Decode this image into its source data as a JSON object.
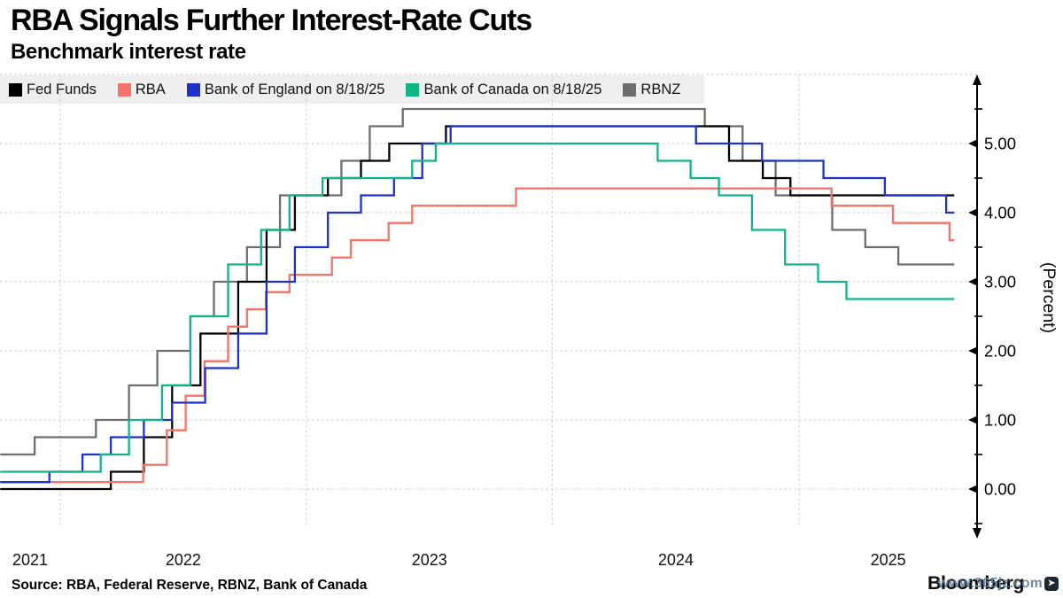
{
  "header": {
    "title": "RBA Signals Further Interest-Rate Cuts",
    "subtitle": "Benchmark interest rate"
  },
  "footer": {
    "source": "Source: RBA, Federal Reserve, RBNZ, Bank of Canada",
    "brand": "Bloomberg",
    "watermark": "www.365jz.com"
  },
  "chart_data": {
    "type": "line",
    "step": true,
    "title": "RBA Signals Further Interest-Rate Cuts",
    "subtitle": "Benchmark interest rate",
    "x_domain": [
      "2021-10-04",
      "2025-09-24"
    ],
    "series_end_date": "2025-08-19",
    "ylim": [
      -0.7,
      6.0
    ],
    "grid": "dashed",
    "legend_position": "top",
    "y_axis": {
      "label": "(Percent)",
      "side": "right",
      "majors": [
        0,
        1,
        2,
        3,
        4,
        5
      ],
      "major_labels": [
        "0.00",
        "1.00",
        "2.00",
        "3.00",
        "4.00",
        "5.00"
      ],
      "minors": [
        -0.5,
        0.5,
        1.5,
        2.5,
        3.5,
        4.5,
        5.5
      ]
    },
    "x_axis": {
      "year_labels": [
        "2021",
        "2022",
        "2023",
        "2024",
        "2025"
      ],
      "gridline_years": [
        2022,
        2023,
        2024,
        2025
      ]
    },
    "draw_order": [
      4,
      0,
      1,
      2,
      3
    ],
    "series": [
      {
        "name": "Fed Funds",
        "color": "#000000",
        "points": [
          [
            "2021-10-04",
            0.0
          ],
          [
            "2022-03-17",
            0.25
          ],
          [
            "2022-05-05",
            0.75
          ],
          [
            "2022-06-16",
            1.5
          ],
          [
            "2022-07-28",
            2.25
          ],
          [
            "2022-09-22",
            3.0
          ],
          [
            "2022-11-03",
            3.75
          ],
          [
            "2022-12-15",
            4.25
          ],
          [
            "2023-02-02",
            4.5
          ],
          [
            "2023-03-23",
            4.75
          ],
          [
            "2023-05-04",
            5.0
          ],
          [
            "2023-07-27",
            5.25
          ],
          [
            "2024-09-19",
            4.75
          ],
          [
            "2024-11-08",
            4.5
          ],
          [
            "2024-12-19",
            4.25
          ]
        ]
      },
      {
        "name": "RBA",
        "color": "#f4736b",
        "points": [
          [
            "2021-10-04",
            0.1
          ],
          [
            "2022-05-04",
            0.35
          ],
          [
            "2022-06-08",
            0.85
          ],
          [
            "2022-07-06",
            1.35
          ],
          [
            "2022-08-03",
            1.85
          ],
          [
            "2022-09-07",
            2.35
          ],
          [
            "2022-10-05",
            2.6
          ],
          [
            "2022-11-02",
            2.85
          ],
          [
            "2022-12-07",
            3.1
          ],
          [
            "2023-02-08",
            3.35
          ],
          [
            "2023-03-08",
            3.6
          ],
          [
            "2023-05-03",
            3.85
          ],
          [
            "2023-06-07",
            4.1
          ],
          [
            "2023-11-08",
            4.35
          ],
          [
            "2025-02-18",
            4.1
          ],
          [
            "2025-05-20",
            3.85
          ],
          [
            "2025-08-12",
            3.6
          ]
        ]
      },
      {
        "name": "Bank of England on 8/18/25",
        "color": "#1e32c8",
        "points": [
          [
            "2021-10-04",
            0.1
          ],
          [
            "2021-12-16",
            0.25
          ],
          [
            "2022-02-03",
            0.5
          ],
          [
            "2022-03-17",
            0.75
          ],
          [
            "2022-05-05",
            1.0
          ],
          [
            "2022-06-16",
            1.25
          ],
          [
            "2022-08-04",
            1.75
          ],
          [
            "2022-09-22",
            2.25
          ],
          [
            "2022-11-03",
            3.0
          ],
          [
            "2022-12-15",
            3.5
          ],
          [
            "2023-02-02",
            4.0
          ],
          [
            "2023-03-23",
            4.25
          ],
          [
            "2023-05-11",
            4.5
          ],
          [
            "2023-06-22",
            5.0
          ],
          [
            "2023-08-03",
            5.25
          ],
          [
            "2024-08-01",
            5.0
          ],
          [
            "2024-11-07",
            4.75
          ],
          [
            "2025-02-06",
            4.5
          ],
          [
            "2025-05-08",
            4.25
          ],
          [
            "2025-08-07",
            4.0
          ]
        ]
      },
      {
        "name": "Bank of Canada on 8/18/25",
        "color": "#10b486",
        "points": [
          [
            "2021-10-04",
            0.25
          ],
          [
            "2022-03-02",
            0.5
          ],
          [
            "2022-04-13",
            1.0
          ],
          [
            "2022-06-01",
            1.5
          ],
          [
            "2022-07-13",
            2.5
          ],
          [
            "2022-09-07",
            3.25
          ],
          [
            "2022-10-26",
            3.75
          ],
          [
            "2022-12-07",
            4.25
          ],
          [
            "2023-01-25",
            4.5
          ],
          [
            "2023-06-07",
            4.75
          ],
          [
            "2023-07-12",
            5.0
          ],
          [
            "2024-06-05",
            4.75
          ],
          [
            "2024-07-24",
            4.5
          ],
          [
            "2024-09-04",
            4.25
          ],
          [
            "2024-10-23",
            3.75
          ],
          [
            "2024-12-11",
            3.25
          ],
          [
            "2025-01-29",
            3.0
          ],
          [
            "2025-03-12",
            2.75
          ]
        ]
      },
      {
        "name": "RBNZ",
        "color": "#6e6e6e",
        "points": [
          [
            "2021-10-04",
            0.5
          ],
          [
            "2021-11-24",
            0.75
          ],
          [
            "2022-02-23",
            1.0
          ],
          [
            "2022-04-13",
            1.5
          ],
          [
            "2022-05-25",
            2.0
          ],
          [
            "2022-07-13",
            2.5
          ],
          [
            "2022-08-17",
            3.0
          ],
          [
            "2022-10-05",
            3.5
          ],
          [
            "2022-11-23",
            4.25
          ],
          [
            "2023-02-22",
            4.75
          ],
          [
            "2023-04-05",
            5.25
          ],
          [
            "2023-05-24",
            5.5
          ],
          [
            "2024-08-14",
            5.25
          ],
          [
            "2024-10-09",
            4.75
          ],
          [
            "2024-11-27",
            4.25
          ],
          [
            "2025-02-19",
            3.75
          ],
          [
            "2025-04-09",
            3.5
          ],
          [
            "2025-05-28",
            3.25
          ]
        ]
      }
    ]
  }
}
